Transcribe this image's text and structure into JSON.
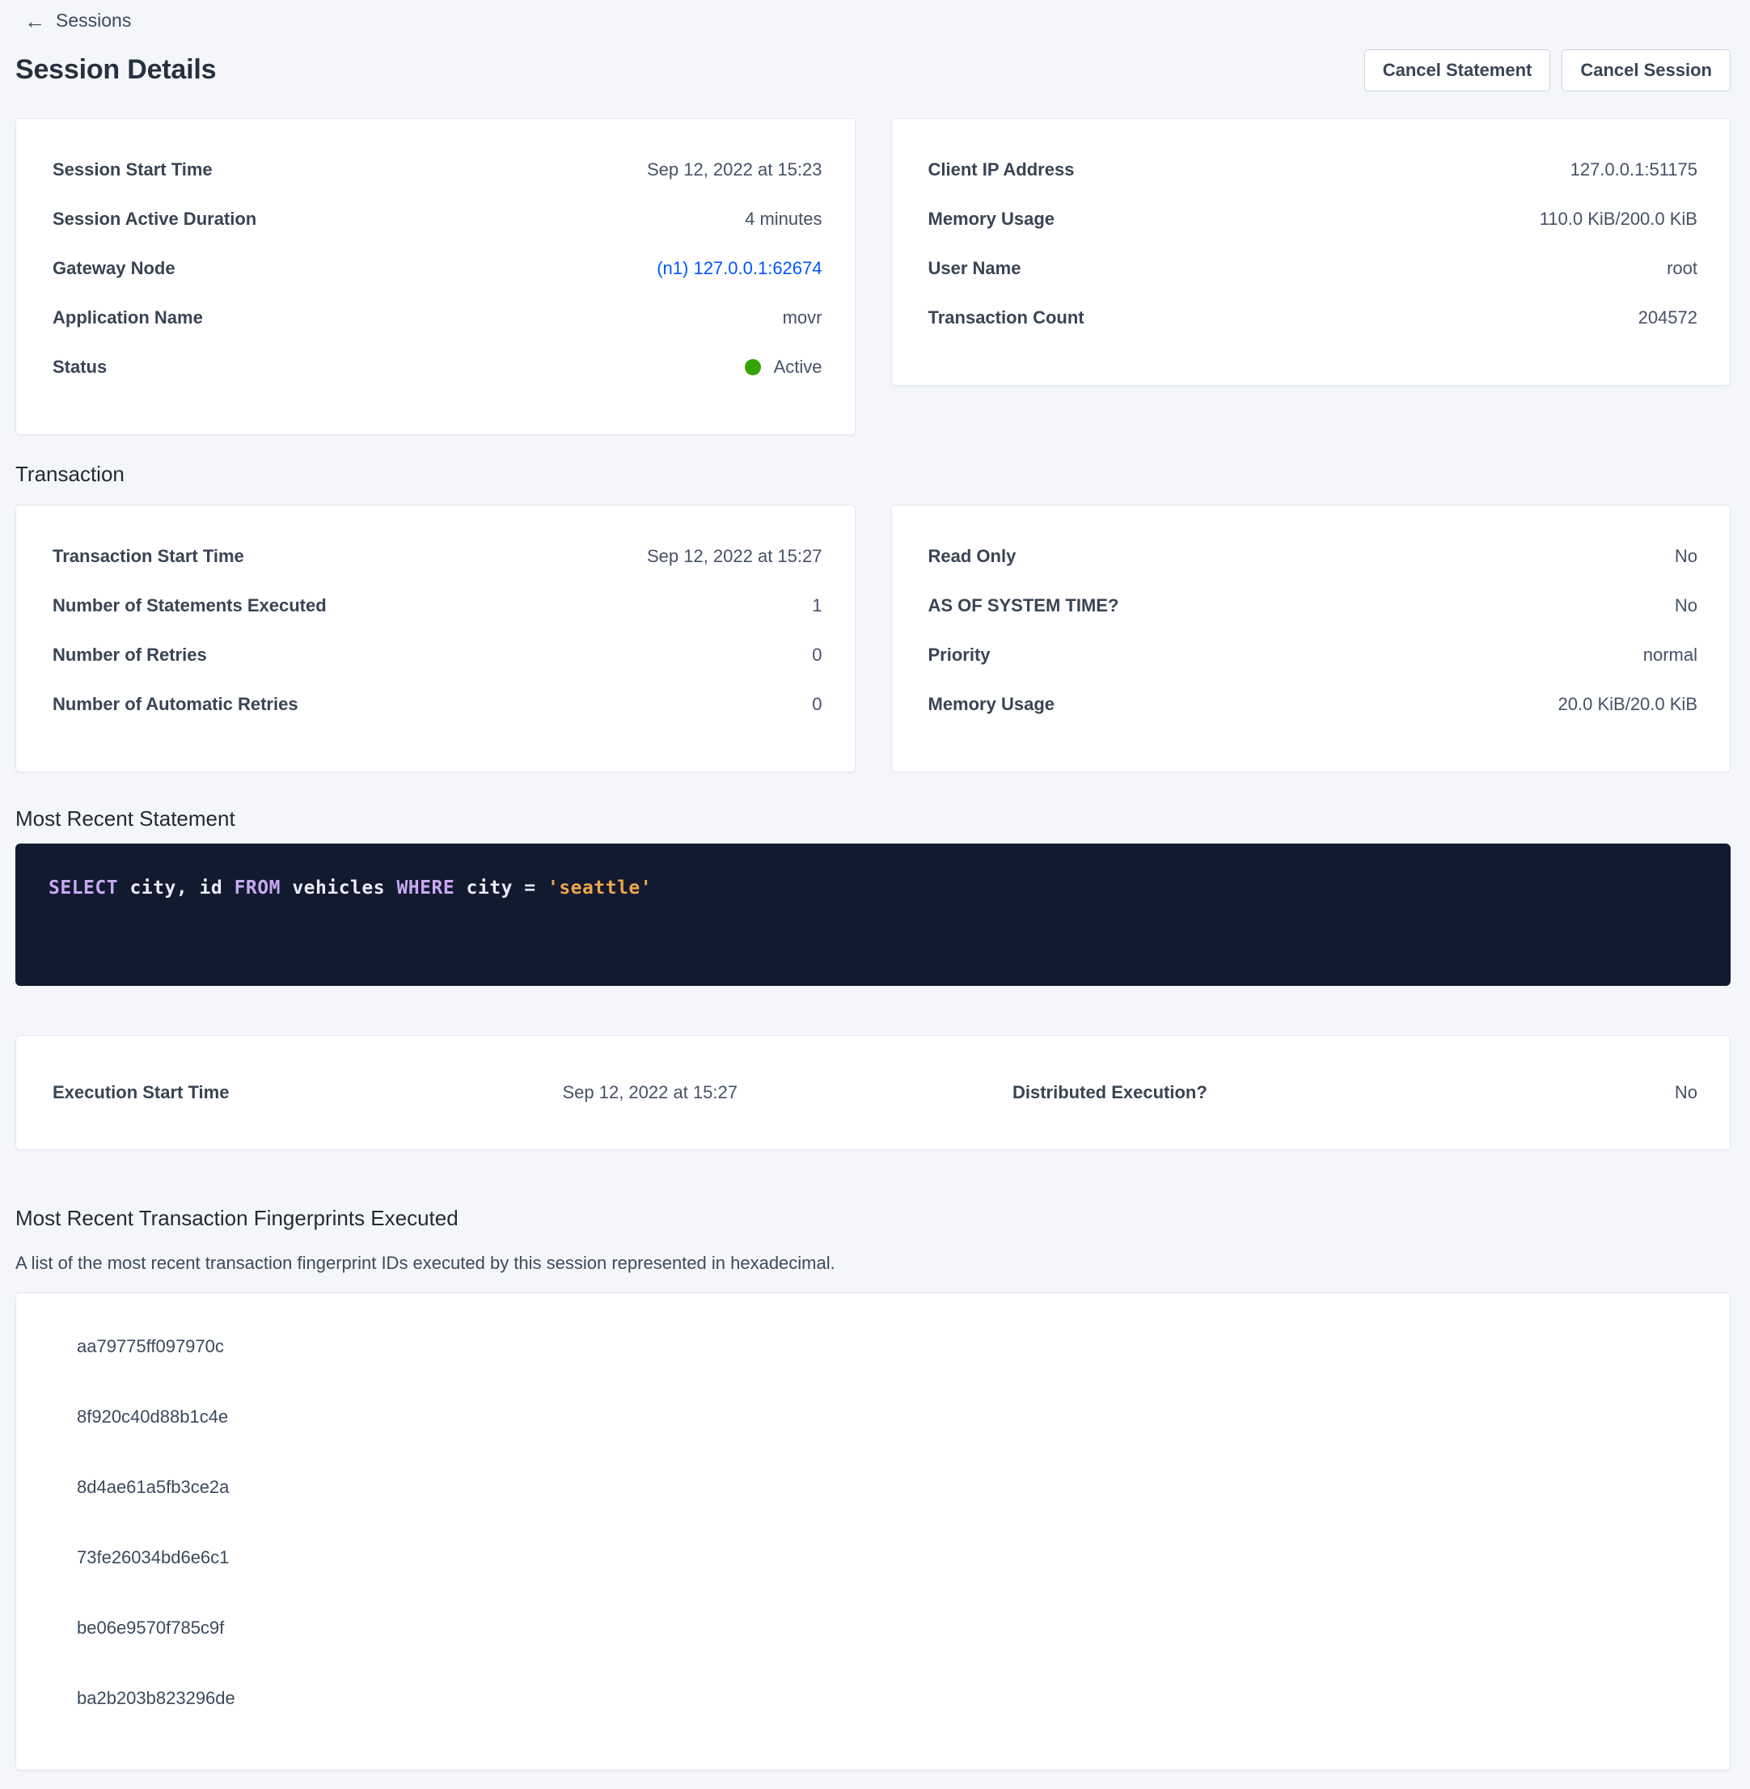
{
  "nav": {
    "back_label": "Sessions"
  },
  "header": {
    "title": "Session Details",
    "cancel_statement_label": "Cancel Statement",
    "cancel_session_label": "Cancel Session"
  },
  "session": {
    "left": [
      {
        "label": "Session Start Time",
        "value": "Sep 12, 2022 at 15:23"
      },
      {
        "label": "Session Active Duration",
        "value": "4 minutes"
      },
      {
        "label": "Gateway Node",
        "value": "(n1) 127.0.0.1:62674",
        "type": "link"
      },
      {
        "label": "Application Name",
        "value": "movr"
      },
      {
        "label": "Status",
        "value": "Active",
        "type": "status"
      }
    ],
    "right": [
      {
        "label": "Client IP Address",
        "value": "127.0.0.1:51175"
      },
      {
        "label": "Memory Usage",
        "value": "110.0 KiB/200.0 KiB"
      },
      {
        "label": "User Name",
        "value": "root"
      },
      {
        "label": "Transaction Count",
        "value": "204572"
      }
    ]
  },
  "transaction": {
    "heading": "Transaction",
    "left": [
      {
        "label": "Transaction Start Time",
        "value": "Sep 12, 2022 at 15:27"
      },
      {
        "label": "Number of Statements Executed",
        "value": "1"
      },
      {
        "label": "Number of Retries",
        "value": "0"
      },
      {
        "label": "Number of Automatic Retries",
        "value": "0"
      }
    ],
    "right": [
      {
        "label": "Read Only",
        "value": "No"
      },
      {
        "label": "AS OF SYSTEM TIME?",
        "value": "No"
      },
      {
        "label": "Priority",
        "value": "normal"
      },
      {
        "label": "Memory Usage",
        "value": "20.0 KiB/20.0 KiB"
      }
    ]
  },
  "statement": {
    "heading": "Most Recent Statement",
    "sql_tokens": [
      {
        "text": "SELECT",
        "type": "keyword"
      },
      {
        "text": " city, id ",
        "type": "plain"
      },
      {
        "text": "FROM",
        "type": "keyword"
      },
      {
        "text": " vehicles ",
        "type": "plain"
      },
      {
        "text": "WHERE",
        "type": "keyword"
      },
      {
        "text": " city = ",
        "type": "plain"
      },
      {
        "text": "'seattle'",
        "type": "string"
      }
    ],
    "execution": [
      {
        "label": "Execution Start Time",
        "value": "Sep 12, 2022 at 15:27"
      },
      {
        "label": "Distributed Execution?",
        "value": "No"
      }
    ]
  },
  "fingerprints": {
    "heading": "Most Recent Transaction Fingerprints Executed",
    "description": "A list of the most recent transaction fingerprint IDs executed by this session represented in hexadecimal.",
    "items": [
      "aa79775ff097970c",
      "8f920c40d88b1c4e",
      "8d4ae61a5fb3ce2a",
      "73fe26034bd6e6c1",
      "be06e9570f785c9f",
      "ba2b203b823296de"
    ]
  },
  "colors": {
    "page_background": "#F4F6FA",
    "link_blue": "#0055FF",
    "status_active_green": "#36A306",
    "code_background": "#121A30",
    "code_keyword": "#C9A9F2",
    "code_string": "#F0A64B"
  }
}
